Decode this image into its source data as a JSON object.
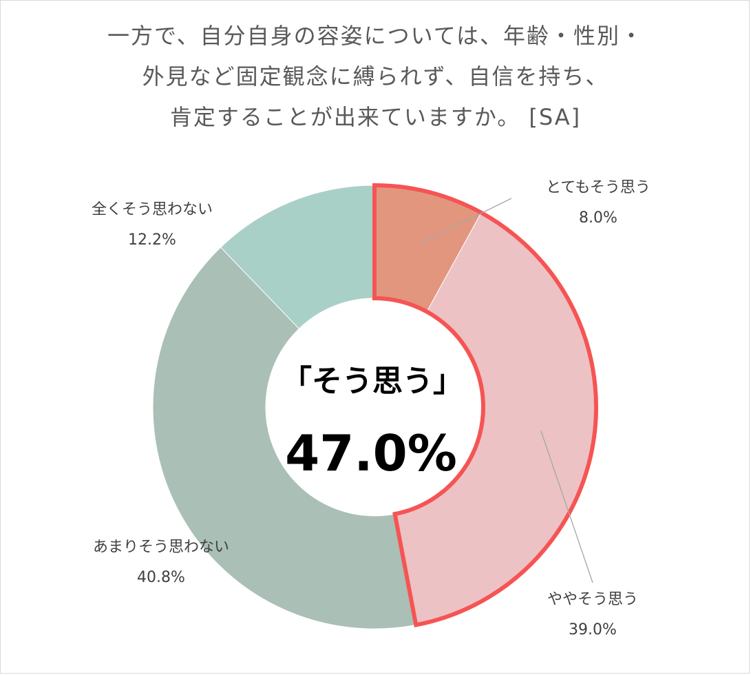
{
  "chart_data": {
    "type": "pie",
    "variant": "donut",
    "title_lines": [
      "一方で、自分自身の容姿については、年齢・性別・",
      "外見など固定観念に縛られず、自信を持ち、",
      "肯定することが出来ていますか。 [SA]"
    ],
    "slices": [
      {
        "label": "とてもそう思う",
        "value_text": "8.0%",
        "value": 8.0,
        "color": "#e2967e"
      },
      {
        "label": "ややそう思う",
        "value_text": "39.0%",
        "value": 39.0,
        "color": "#ecc2c4"
      },
      {
        "label": "あまりそう思わない",
        "value_text": "40.8%",
        "value": 40.8,
        "color": "#aabfb5"
      },
      {
        "label": "全くそう思わない",
        "value_text": "12.2%",
        "value": 12.2,
        "color": "#a9d0c6"
      }
    ],
    "highlight": {
      "slices": [
        "とてもそう思う",
        "ややそう思う"
      ],
      "outline_color": "#f65454"
    },
    "center": {
      "label": "「そう思う」",
      "value": "47.0%"
    }
  }
}
